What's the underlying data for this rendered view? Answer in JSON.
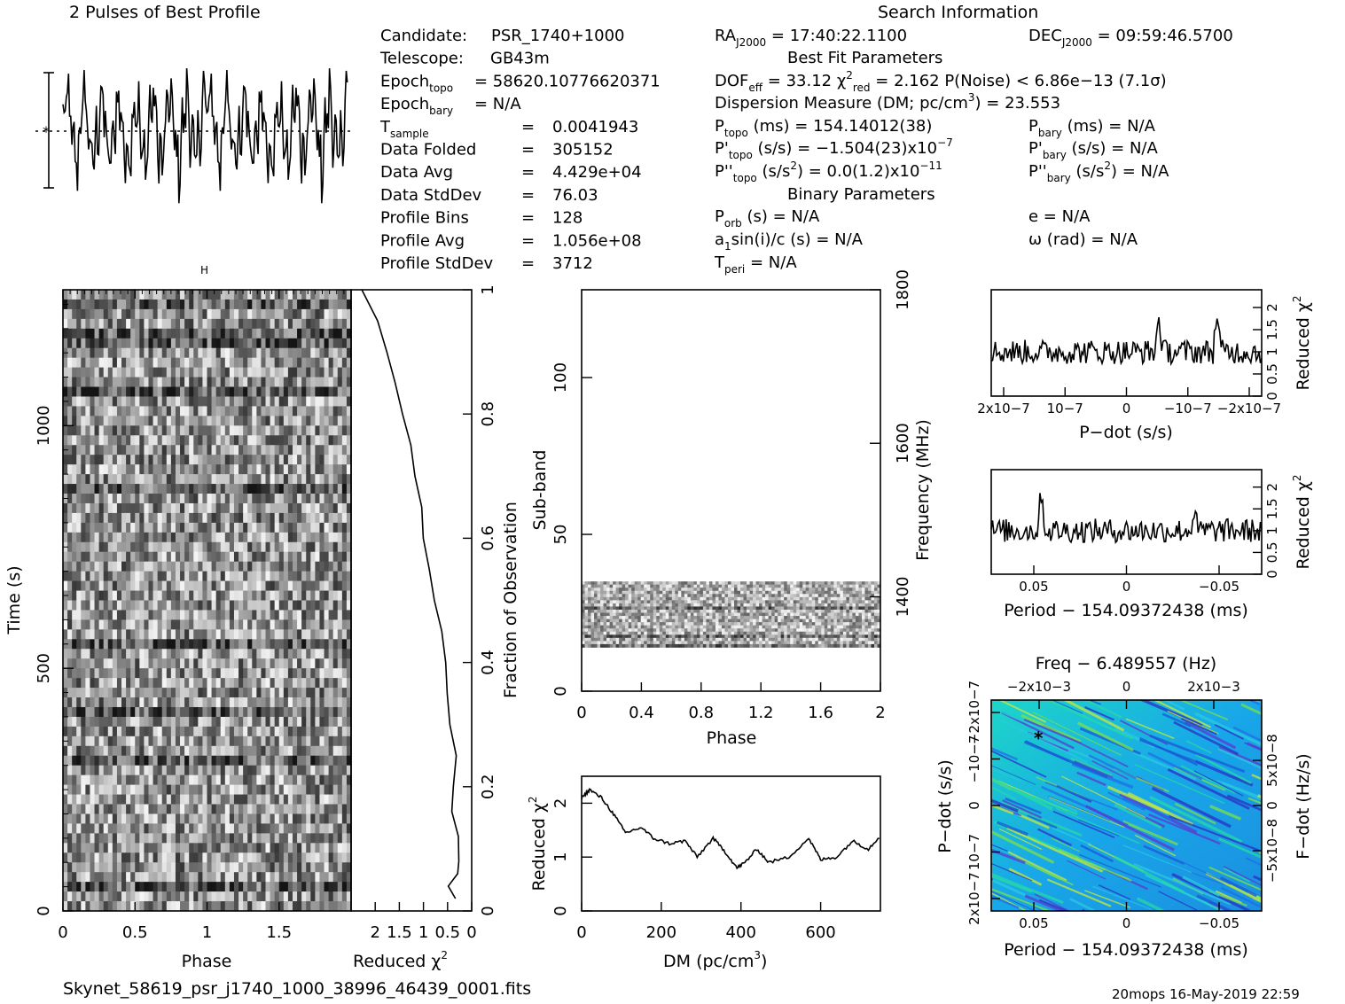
{
  "header": {
    "profile_title": "2 Pulses of Best Profile",
    "search_title": "Search Information",
    "best_fit_title": "Best Fit Parameters",
    "binary_title": "Binary Parameters",
    "filename": "Skynet_58619_psr_j1740_1000_38996_46439_0001.fits",
    "footer": "20mops 16-May-2019 22:59"
  },
  "info_left": [
    {
      "label": "Candidate:",
      "sub": "",
      "eq": "",
      "value": "PSR_1740+1000"
    },
    {
      "label": "Telescope:",
      "sub": "",
      "eq": "",
      "value": "GB43m"
    },
    {
      "label": "Epoch",
      "sub": "topo",
      "eq": "=",
      "value": "58620.10776620371"
    },
    {
      "label": "Epoch",
      "sub": "bary",
      "eq": "=",
      "value": "N/A"
    },
    {
      "label": "T",
      "sub": "sample",
      "eq": "=",
      "value": "0.0041943"
    },
    {
      "label": "Data Folded",
      "sub": "",
      "eq": "=",
      "value": "305152"
    },
    {
      "label": "Data Avg",
      "sub": "",
      "eq": "=",
      "value": "4.429e+04"
    },
    {
      "label": "Data StdDev",
      "sub": "",
      "eq": "=",
      "value": "76.03"
    },
    {
      "label": "Profile Bins",
      "sub": "",
      "eq": "=",
      "value": "128"
    },
    {
      "label": "Profile Avg",
      "sub": "",
      "eq": "=",
      "value": "1.056e+08"
    },
    {
      "label": "Profile StdDev",
      "sub": "",
      "eq": "=",
      "value": "3712"
    }
  ],
  "info_right": {
    "ra": "RAJ2000 = 17:40:22.1100",
    "dec": "DECJ2000 = 09:59:46.5700",
    "dof": "DOFeff = 33.12  χ2red = 2.162  P(Noise) < 6.86e−13  (7.1σ)",
    "dm": "Dispersion Measure (DM; pc/cm3) = 23.553",
    "p_topo": "Ptopo (ms) =  154.14012(38)",
    "p_bary": "Pbary (ms) = N/A",
    "pd_topo": "P'topo (s/s) = −1.504(23)x10−7",
    "pd_bary": "P'bary (s/s) = N/A",
    "pdd_topo": "P''topo (s/s2) = 0.0(1.2)x10−11",
    "pdd_bary": "P''bary (s/s2) = N/A",
    "porb": "Porb (s) = N/A",
    "e": "e = N/A",
    "a1": "a1sin(i)/c (s) = N/A",
    "omega": "ω (rad) = N/A",
    "tperi": "Tperi = N/A"
  },
  "chart_data": [
    {
      "id": "pulse-profile",
      "type": "line",
      "title": "2 Pulses of Best Profile",
      "x_range": [
        0,
        2
      ],
      "bins": 128,
      "pulses": 2
    },
    {
      "id": "time-phase",
      "type": "heatmap",
      "xlabel": "Phase",
      "ylabel": "Time (s)",
      "x_ticks": [
        "0",
        "0.5",
        "1",
        "1.5"
      ],
      "y_ticks": [
        "0",
        "500",
        "1000"
      ],
      "x_range": [
        0,
        2
      ],
      "y_range": [
        0,
        1280
      ]
    },
    {
      "id": "chi2-vs-time",
      "type": "line",
      "xlabel": "Reduced χ2",
      "ylabel": "Fraction of Observation",
      "x_ticks": [
        "2",
        "1.5",
        "1",
        "0.5",
        "0"
      ],
      "y_ticks": [
        "0",
        "0.2",
        "0.4",
        "0.6",
        "0.8",
        "1"
      ],
      "x_range": [
        2.5,
        0
      ],
      "y_range": [
        0,
        1
      ],
      "points": [
        [
          0.3,
          0.02
        ],
        [
          0.5,
          0.04
        ],
        [
          0.3,
          0.06
        ],
        [
          0.25,
          0.08
        ],
        [
          0.3,
          0.12
        ],
        [
          0.4,
          0.16
        ],
        [
          0.35,
          0.2
        ],
        [
          0.35,
          0.25
        ],
        [
          0.45,
          0.3
        ],
        [
          0.5,
          0.35
        ],
        [
          0.55,
          0.4
        ],
        [
          0.65,
          0.45
        ],
        [
          0.8,
          0.5
        ],
        [
          0.9,
          0.55
        ],
        [
          1.0,
          0.6
        ],
        [
          1.05,
          0.65
        ],
        [
          1.2,
          0.7
        ],
        [
          1.3,
          0.75
        ],
        [
          1.45,
          0.8
        ],
        [
          1.6,
          0.85
        ],
        [
          1.8,
          0.9
        ],
        [
          1.95,
          0.95
        ],
        [
          2.25,
          1.0
        ]
      ]
    },
    {
      "id": "subband-phase",
      "type": "heatmap",
      "xlabel": "Phase",
      "ylabel": "Sub-band",
      "y2label": "Frequency (MHz)",
      "x_ticks": [
        "0",
        "0.4",
        "0.8",
        "1.2",
        "1.6",
        "2"
      ],
      "y_ticks": [
        "0",
        "50",
        "100"
      ],
      "y2_ticks": [
        "1400",
        "1600",
        "1800"
      ],
      "x_range": [
        0,
        2
      ],
      "y_range": [
        0,
        128
      ],
      "signal_band": [
        14,
        35
      ]
    },
    {
      "id": "chi2-vs-dm",
      "type": "line",
      "xlabel": "DM (pc/cm3)",
      "ylabel": "Reduced χ2",
      "x_ticks": [
        "0",
        "200",
        "400",
        "600"
      ],
      "y_ticks": [
        "0",
        "1",
        "2"
      ],
      "x_range": [
        0,
        750
      ],
      "y_range": [
        0,
        2.5
      ],
      "points": [
        [
          0,
          2.1
        ],
        [
          20,
          2.25
        ],
        [
          50,
          2.1
        ],
        [
          80,
          1.8
        ],
        [
          110,
          1.45
        ],
        [
          150,
          1.55
        ],
        [
          180,
          1.35
        ],
        [
          220,
          1.25
        ],
        [
          260,
          1.3
        ],
        [
          290,
          1.0
        ],
        [
          330,
          1.35
        ],
        [
          360,
          1.1
        ],
        [
          390,
          0.8
        ],
        [
          410,
          0.9
        ],
        [
          440,
          1.15
        ],
        [
          470,
          0.9
        ],
        [
          520,
          1.0
        ],
        [
          570,
          1.35
        ],
        [
          600,
          0.95
        ],
        [
          640,
          1.0
        ],
        [
          680,
          1.3
        ],
        [
          720,
          1.15
        ],
        [
          750,
          1.4
        ]
      ]
    },
    {
      "id": "chi2-vs-pdot",
      "type": "line",
      "xlabel": "P−dot (s/s)",
      "ylabel": "Reduced χ2",
      "x_ticks": [
        "2x10−7",
        "10−7",
        "0",
        "−10−7",
        "−2x10−7"
      ],
      "y_ticks": [
        "0",
        "0.5",
        "1",
        "1.5",
        "2"
      ],
      "x_range": [
        2.3e-07,
        -2.3e-07
      ],
      "y_range": [
        0,
        2.4
      ]
    },
    {
      "id": "chi2-vs-period",
      "type": "line",
      "xlabel": "Period − 154.09372438 (ms)",
      "ylabel": "Reduced χ2",
      "x_ticks": [
        "0.05",
        "0",
        "−0.05"
      ],
      "y_ticks": [
        "0",
        "0.5",
        "1",
        "1.5",
        "2"
      ],
      "x_range": [
        0.075,
        -0.075
      ],
      "y_range": [
        0,
        2.4
      ]
    },
    {
      "id": "p-pdot-plane",
      "type": "heatmap",
      "title": "Freq − 6.489557 (Hz)",
      "xlabel": "Period − 154.09372438 (ms)",
      "ylabel": "P−dot (s/s)",
      "y2label": "F−dot (Hz/s)",
      "x_ticks": [
        "0.05",
        "0",
        "−0.05"
      ],
      "top_ticks": [
        "−2x10−3",
        "0",
        "2x10−3"
      ],
      "y_ticks": [
        "2x10−7",
        "10−7",
        "0",
        "−10−7",
        "−2x10−7"
      ],
      "y2_ticks": [
        "−5x10−8",
        "0",
        "5x10−8"
      ],
      "best_marker": [
        0.05,
        -1.5e-07
      ]
    }
  ]
}
